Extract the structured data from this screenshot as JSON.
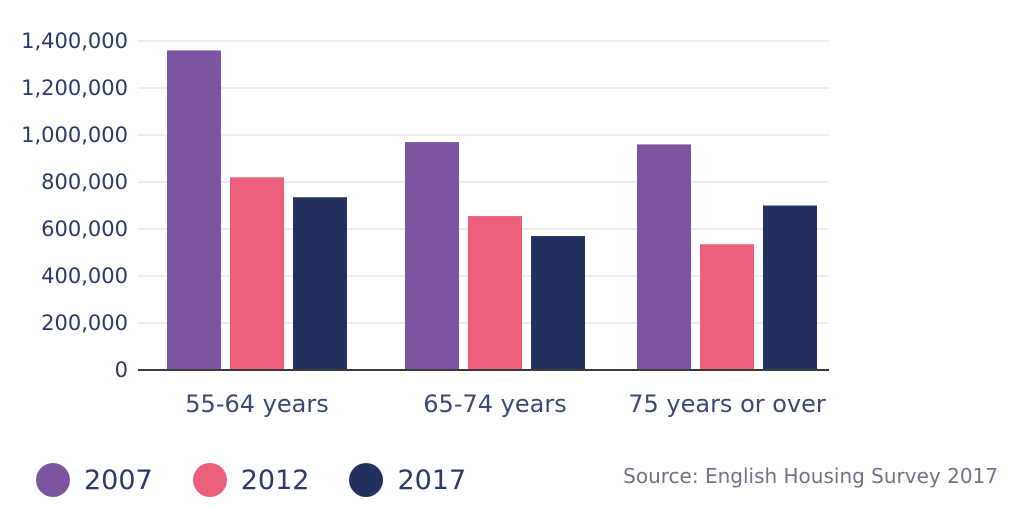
{
  "chart_data": {
    "type": "bar",
    "categories": [
      "55-64 years",
      "65-74 years",
      "75 years or over"
    ],
    "series": [
      {
        "name": "2007",
        "color": "#7b559f",
        "values": [
          1360000,
          970000,
          960000
        ]
      },
      {
        "name": "2012",
        "color": "#eb5f7b",
        "values": [
          820000,
          655000,
          535000
        ]
      },
      {
        "name": "2017",
        "color": "#24305e",
        "values": [
          735000,
          570000,
          700000
        ]
      }
    ],
    "title": "",
    "xlabel": "",
    "ylabel": "",
    "ylim": [
      0,
      1400000
    ],
    "yticks": [
      0,
      200000,
      400000,
      600000,
      800000,
      1000000,
      1200000,
      1400000
    ],
    "ytick_labels": [
      "0",
      "200,000",
      "400,000",
      "600,000",
      "800,000",
      "1,000,000",
      "1,200,000",
      "1,400,000"
    ],
    "grid": true,
    "legend_position": "bottom-left"
  },
  "source": "Source: English Housing Survey 2017"
}
